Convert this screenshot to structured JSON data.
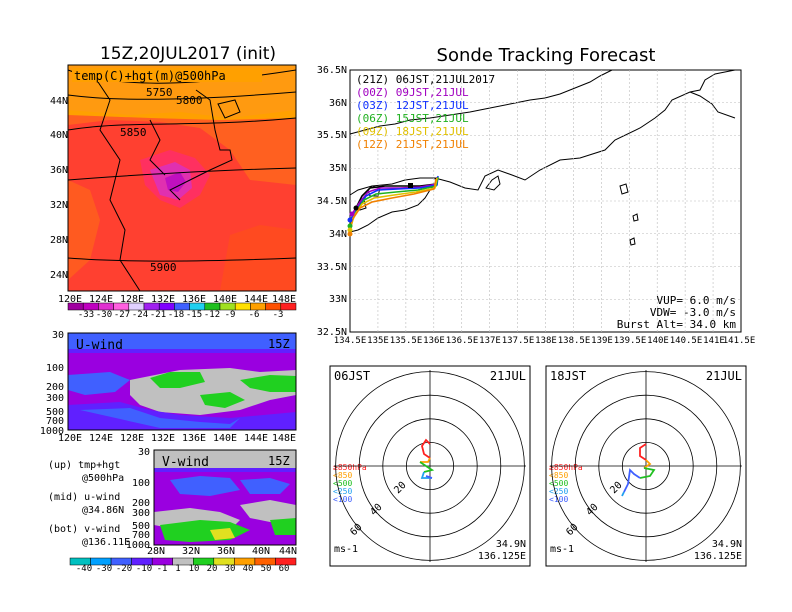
{
  "left_map": {
    "title": "15Z,20JUL2017 (init)",
    "label": "temp(C)+hgt(m)@500hPa",
    "contours": [
      "5750",
      "5800",
      "5850",
      "5900"
    ],
    "lat_ticks": [
      "44N",
      "40N",
      "36N",
      "32N",
      "28N",
      "24N"
    ],
    "lon_ticks": [
      "120E",
      "124E",
      "128E",
      "132E",
      "136E",
      "140E",
      "144E",
      "148E"
    ],
    "colorbar": [
      "-33",
      "-30",
      "-27",
      "-24",
      "-21",
      "-18",
      "-15",
      "-12",
      "-9",
      "-6",
      "-3"
    ]
  },
  "u_panel": {
    "label": "U-wind",
    "time": "15Z",
    "p_ticks": [
      "30",
      "100",
      "200",
      "300",
      "500",
      "700",
      "1000"
    ],
    "lon_ticks": [
      "120E",
      "124E",
      "128E",
      "132E",
      "136E",
      "140E",
      "144E",
      "148E"
    ]
  },
  "v_panel": {
    "label": "V-wind",
    "time": "15Z",
    "p_ticks": [
      "30",
      "100",
      "200",
      "300",
      "500",
      "700",
      "1000"
    ],
    "lat_ticks": [
      "28N",
      "32N",
      "36N",
      "40N",
      "44N"
    ],
    "colorbar": [
      "-40",
      "-30",
      "-20",
      "-10",
      "-1",
      "1",
      "10",
      "20",
      "30",
      "40",
      "50",
      "60"
    ]
  },
  "legend_notes": [
    "(up) tmp+hgt",
    "@500hPa",
    "(mid) u-wind",
    "@34.86N",
    "(bot) v-wind",
    "@136.11E"
  ],
  "tracking": {
    "title": "Sonde Tracking Forecast",
    "lat_ticks": [
      "36.5N",
      "36N",
      "35.5N",
      "35N",
      "34.5N",
      "34N",
      "33.5N",
      "33N",
      "32.5N"
    ],
    "lon_ticks": [
      "134.5E",
      "135E",
      "135.5E",
      "136E",
      "136.5E",
      "137E",
      "137.5E",
      "138E",
      "138.5E",
      "139E",
      "139.5E",
      "140E",
      "140.5E",
      "141E",
      "141.5E"
    ],
    "launches": [
      {
        "label": "(21Z) 06JST,21JUL2017",
        "color": "#000000"
      },
      {
        "label": "(00Z) 09JST,21JUL",
        "color": "#a000c0"
      },
      {
        "label": "(03Z) 12JST,21JUL",
        "color": "#1030ff"
      },
      {
        "label": "(06Z) 15JST,21JUL",
        "color": "#20b020"
      },
      {
        "label": "(09Z) 18JST,21JUL",
        "color": "#e0c000"
      },
      {
        "label": "(12Z) 21JST,21JUL",
        "color": "#f08000"
      }
    ],
    "params": [
      "VUP= 6.0 m/s",
      "VDW= -3.0 m/s",
      "Burst Alt= 34.0 km"
    ]
  },
  "hodographs": [
    {
      "time": "06JST",
      "date": "21JUL",
      "lat": "34.9N",
      "lon": "136.125E",
      "unit": "ms-1",
      "rings": [
        "20",
        "40",
        "60"
      ],
      "levels": [
        "≥850hPa",
        "<850",
        "<500",
        "<250",
        "<100"
      ]
    },
    {
      "time": "18JST",
      "date": "21JUL",
      "lat": "34.9N",
      "lon": "136.125E",
      "unit": "ms-1",
      "rings": [
        "20",
        "40",
        "60"
      ],
      "levels": [
        "≥850hPa",
        "<850",
        "<500",
        "<250",
        "<100"
      ]
    }
  ],
  "colors": {
    "temp_scale": [
      "#a000a0",
      "#c000c0",
      "#e030d0",
      "#ff60e0",
      "#e0d0ff",
      "#a020f0",
      "#8000ff",
      "#4060ff",
      "#20d0f0",
      "#20c020",
      "#a0e020",
      "#ffe000",
      "#ffa000",
      "#ff5000",
      "#ff2020"
    ],
    "wind_scale": [
      "#00c0c0",
      "#00a0ff",
      "#4060ff",
      "#6020ff",
      "#9a00e0",
      "#c0c0c0",
      "#20d020",
      "#e0e020",
      "#ffa000",
      "#ff6000",
      "#ff2020"
    ]
  }
}
